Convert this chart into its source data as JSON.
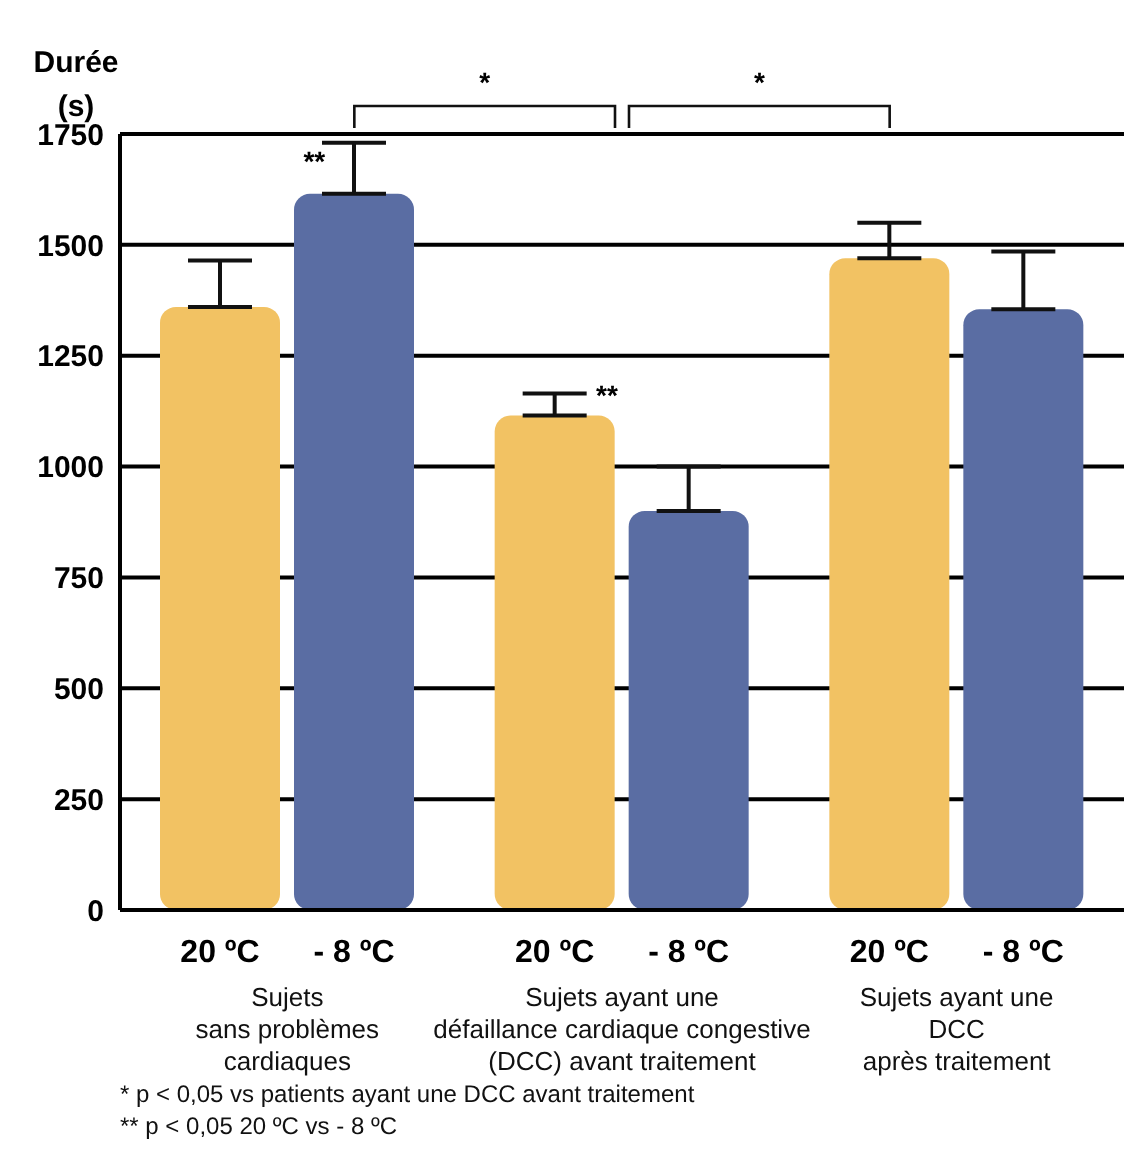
{
  "chart_data": {
    "type": "bar",
    "ylabel": "Durée (s)",
    "categories": [
      "Sujets\nsans problèmes\ncardiaques",
      "Sujets ayant une\ndéfaillance cardiaque congestive\n(DCC) avant traitement",
      "Sujets ayant une\nDCC\naprès traitement"
    ],
    "series": [
      {
        "name": "20 ºC",
        "color": "#f2c263",
        "values": [
          1360,
          1115,
          1470
        ],
        "errors": [
          [
            1360,
            1465
          ],
          [
            1115,
            1165
          ],
          [
            1470,
            1550
          ]
        ]
      },
      {
        "name": "- 8 ºC",
        "color": "#5a6da3",
        "values": [
          1615,
          900,
          1355
        ],
        "errors": [
          [
            1615,
            1730
          ],
          [
            900,
            1000
          ],
          [
            1355,
            1485
          ]
        ]
      }
    ],
    "ylim": [
      0,
      1750
    ],
    "yticks": [
      0,
      250,
      500,
      750,
      1000,
      1250,
      1500,
      1750
    ],
    "grid": "y",
    "legend": false,
    "annotations": [
      "*",
      "*",
      "**",
      "**",
      "* p < 0,05 vs patients ayant une DCC avant traitement",
      "** p < 0,05 20 ºC vs - 8 ºC"
    ]
  }
}
